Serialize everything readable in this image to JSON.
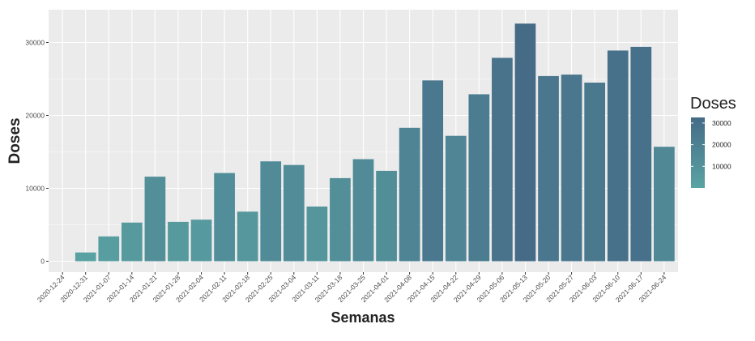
{
  "chart_data": {
    "type": "bar",
    "xlabel": "Semanas",
    "ylabel": "Doses",
    "categories": [
      "2020-12-24",
      "2020-12-31",
      "2021-01-07",
      "2021-01-14",
      "2021-01-21",
      "2021-01-28",
      "2021-02-04",
      "2021-02-11",
      "2021-02-18",
      "2021-02-25",
      "2021-03-04",
      "2021-03-11",
      "2021-03-18",
      "2021-03-25",
      "2021-04-01",
      "2021-04-08",
      "2021-04-15",
      "2021-04-22",
      "2021-04-29",
      "2021-05-06",
      "2021-05-13",
      "2021-05-20",
      "2021-05-27",
      "2021-06-03",
      "2021-06-10",
      "2021-06-17",
      "2021-06-24"
    ],
    "values": [
      0,
      1200,
      3400,
      5300,
      11600,
      5400,
      5700,
      12100,
      6800,
      13700,
      13200,
      7500,
      11400,
      14000,
      12400,
      18300,
      24800,
      17200,
      22900,
      27900,
      32600,
      25400,
      25600,
      24500,
      28900,
      29400,
      15700
    ],
    "ylim": [
      -1500,
      34500
    ],
    "yticks": [
      0,
      10000,
      20000,
      30000
    ],
    "grid": true,
    "legend": {
      "title": "Doses",
      "placement": "right",
      "ticks": [
        10000,
        20000,
        30000
      ],
      "range": [
        0,
        32600
      ]
    },
    "colors": {
      "low": "#5aa3a3",
      "high": "#456b87",
      "panel_bg": "#ebebeb",
      "grid_major": "#ffffff",
      "axis_text": "#4d4d4d",
      "title_text": "#222222"
    }
  }
}
